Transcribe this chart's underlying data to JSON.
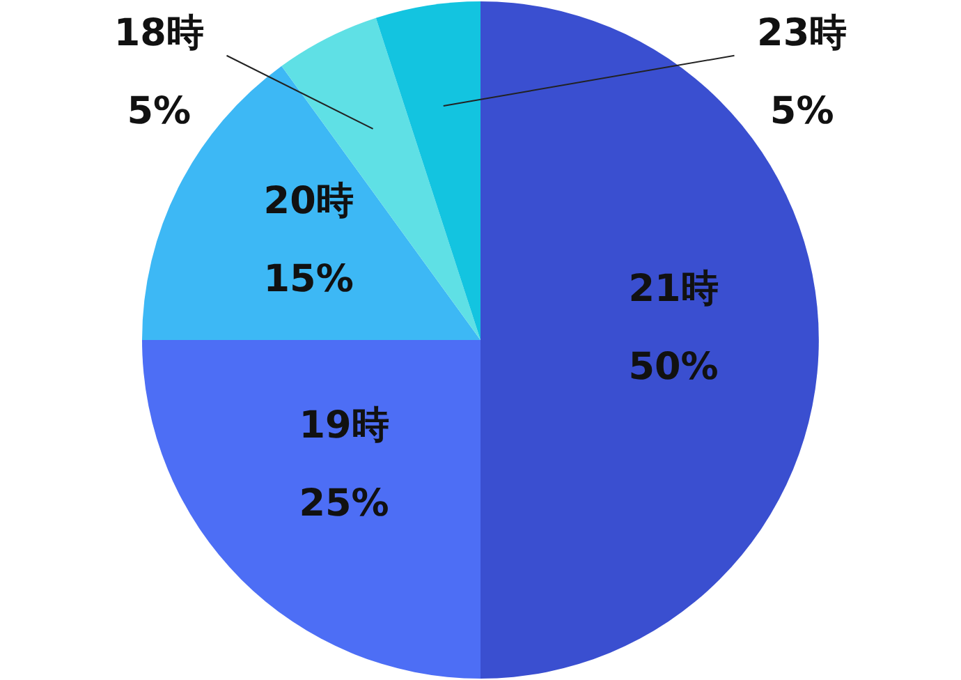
{
  "chart_data": {
    "type": "pie",
    "categories": [
      "21時",
      "19時",
      "20時",
      "18時",
      "23時"
    ],
    "values": [
      50,
      25,
      15,
      5,
      5
    ],
    "value_labels": [
      "50%",
      "25%",
      "15%",
      "5%",
      "5%"
    ],
    "colors": [
      "#3a4fd0",
      "#4d6ef5",
      "#3db8f5",
      "#5fe0e5",
      "#13c4e0"
    ]
  }
}
